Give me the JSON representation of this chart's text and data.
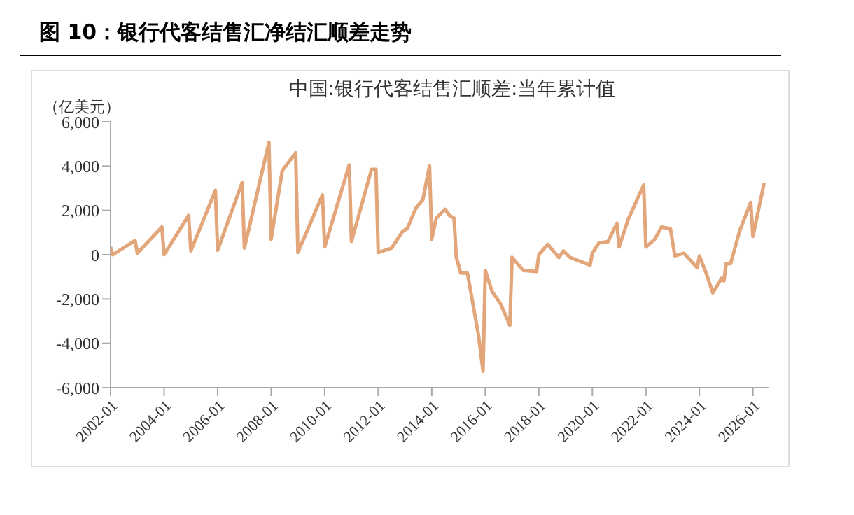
{
  "chart_data": {
    "type": "line",
    "title": "图 10：银行代客结售汇净结汇顺差走势",
    "subtitle": "中国:银行代客结售汇顺差:当年累计值",
    "ylabel": "（亿美元）",
    "x": [
      "2002-01",
      "2002-02",
      "2002-12",
      "2003-01",
      "2003-12",
      "2004-01",
      "2004-12",
      "2005-01",
      "2005-12",
      "2006-01",
      "2006-12",
      "2007-01",
      "2007-12",
      "2008-01",
      "2008-06",
      "2008-12",
      "2009-01",
      "2009-12",
      "2010-01",
      "2010-12",
      "2011-01",
      "2011-10",
      "2011-12",
      "2012-01",
      "2012-07",
      "2012-12",
      "2013-02",
      "2013-06",
      "2013-09",
      "2013-12",
      "2014-01",
      "2014-03",
      "2014-07",
      "2014-09",
      "2014-11",
      "2014-12",
      "2015-02",
      "2015-05",
      "2015-10",
      "2015-12",
      "2016-01",
      "2016-04",
      "2016-08",
      "2016-12",
      "2017-01",
      "2017-06",
      "2017-12",
      "2018-01",
      "2018-05",
      "2018-10",
      "2018-12",
      "2019-03",
      "2019-12",
      "2020-01",
      "2020-04",
      "2020-08",
      "2020-12",
      "2021-01",
      "2021-05",
      "2021-09",
      "2021-12",
      "2022-01",
      "2022-05",
      "2022-08",
      "2022-12",
      "2023-02",
      "2023-06",
      "2023-12",
      "2024-01",
      "2024-04",
      "2024-07",
      "2024-11",
      "2024-12",
      "2025-01",
      "2025-03",
      "2025-07",
      "2025-12",
      "2026-01",
      "2026-06"
    ],
    "series": [
      {
        "color": "#e3a67a",
        "values": [
          350,
          0,
          640,
          70,
          1250,
          0,
          1770,
          170,
          2900,
          200,
          3260,
          300,
          5070,
          700,
          3800,
          4600,
          100,
          2700,
          350,
          4050,
          600,
          3850,
          3850,
          100,
          300,
          1060,
          1180,
          2120,
          2480,
          4010,
          700,
          1650,
          2050,
          1770,
          1650,
          -120,
          -830,
          -830,
          -3660,
          -5260,
          -710,
          -1650,
          -2240,
          -3190,
          -120,
          -710,
          -760,
          0,
          470,
          -120,
          170,
          -120,
          -470,
          70,
          540,
          590,
          1420,
          350,
          1580,
          2480,
          3140,
          350,
          700,
          1250,
          1180,
          -50,
          70,
          -590,
          -50,
          -830,
          -1720,
          -1060,
          -1180,
          -400,
          -400,
          1060,
          2360,
          830,
          3230
        ]
      }
    ],
    "xlim": [
      "2002-01",
      "2026-08"
    ],
    "xticks": [
      "2002-01",
      "2004-01",
      "2006-01",
      "2008-01",
      "2010-01",
      "2012-01",
      "2014-01",
      "2016-01",
      "2018-01",
      "2020-01",
      "2022-01",
      "2024-01",
      "2026-01"
    ],
    "ylim": [
      -6000,
      6000
    ],
    "yticks": [
      {
        "value": -6000,
        "label": "-6,000"
      },
      {
        "value": -4000,
        "label": "-4,000"
      },
      {
        "value": -2000,
        "label": "-2,000"
      },
      0,
      {
        "value": 2000,
        "label": "2,000"
      },
      {
        "value": 4000,
        "label": "4,000"
      },
      {
        "value": 6000,
        "label": "6,000"
      }
    ],
    "grid": false,
    "legend": false,
    "marker": "none",
    "line_style": "solid"
  }
}
